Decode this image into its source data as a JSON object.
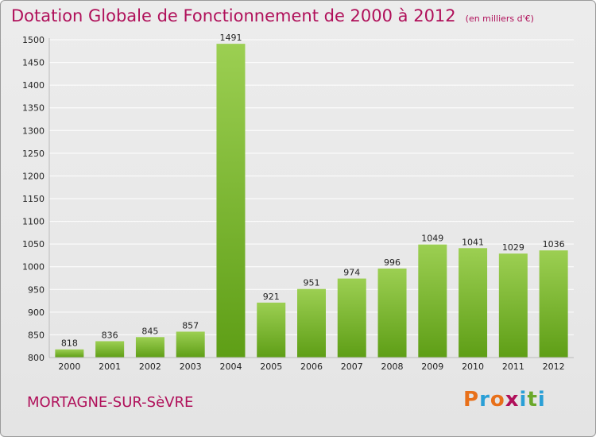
{
  "header": {
    "title": "Dotation Globale de Fonctionnement de 2000 à 2012",
    "unit": "(en milliers d'€)"
  },
  "footer": {
    "commune": "MORTAGNE-SUR-SèVRE",
    "logo": "Proxiti",
    "logo_colors": [
      "#e8701a",
      "#2a9fd6",
      "#e8701a",
      "#b0105a",
      "#2a9fd6",
      "#6aa82a",
      "#2a9fd6"
    ]
  },
  "colors": {
    "bar_light": "#9ccf52",
    "bar_dark": "#5e9e16",
    "grid": "#ffffff",
    "title": "#b0105a"
  },
  "chart_data": {
    "type": "bar",
    "title": "Dotation Globale de Fonctionnement de 2000 à 2012",
    "subtitle": "(en milliers d'€)",
    "xlabel": "",
    "ylabel": "",
    "categories": [
      "2000",
      "2001",
      "2002",
      "2003",
      "2004",
      "2005",
      "2006",
      "2007",
      "2008",
      "2009",
      "2010",
      "2011",
      "2012"
    ],
    "values": [
      818,
      836,
      845,
      857,
      1491,
      921,
      951,
      974,
      996,
      1049,
      1041,
      1029,
      1036
    ],
    "ylim": [
      800,
      1500
    ],
    "yticks": [
      800,
      850,
      900,
      950,
      1000,
      1050,
      1100,
      1150,
      1200,
      1250,
      1300,
      1350,
      1400,
      1450,
      1500
    ],
    "grid": true,
    "data_labels": true
  }
}
